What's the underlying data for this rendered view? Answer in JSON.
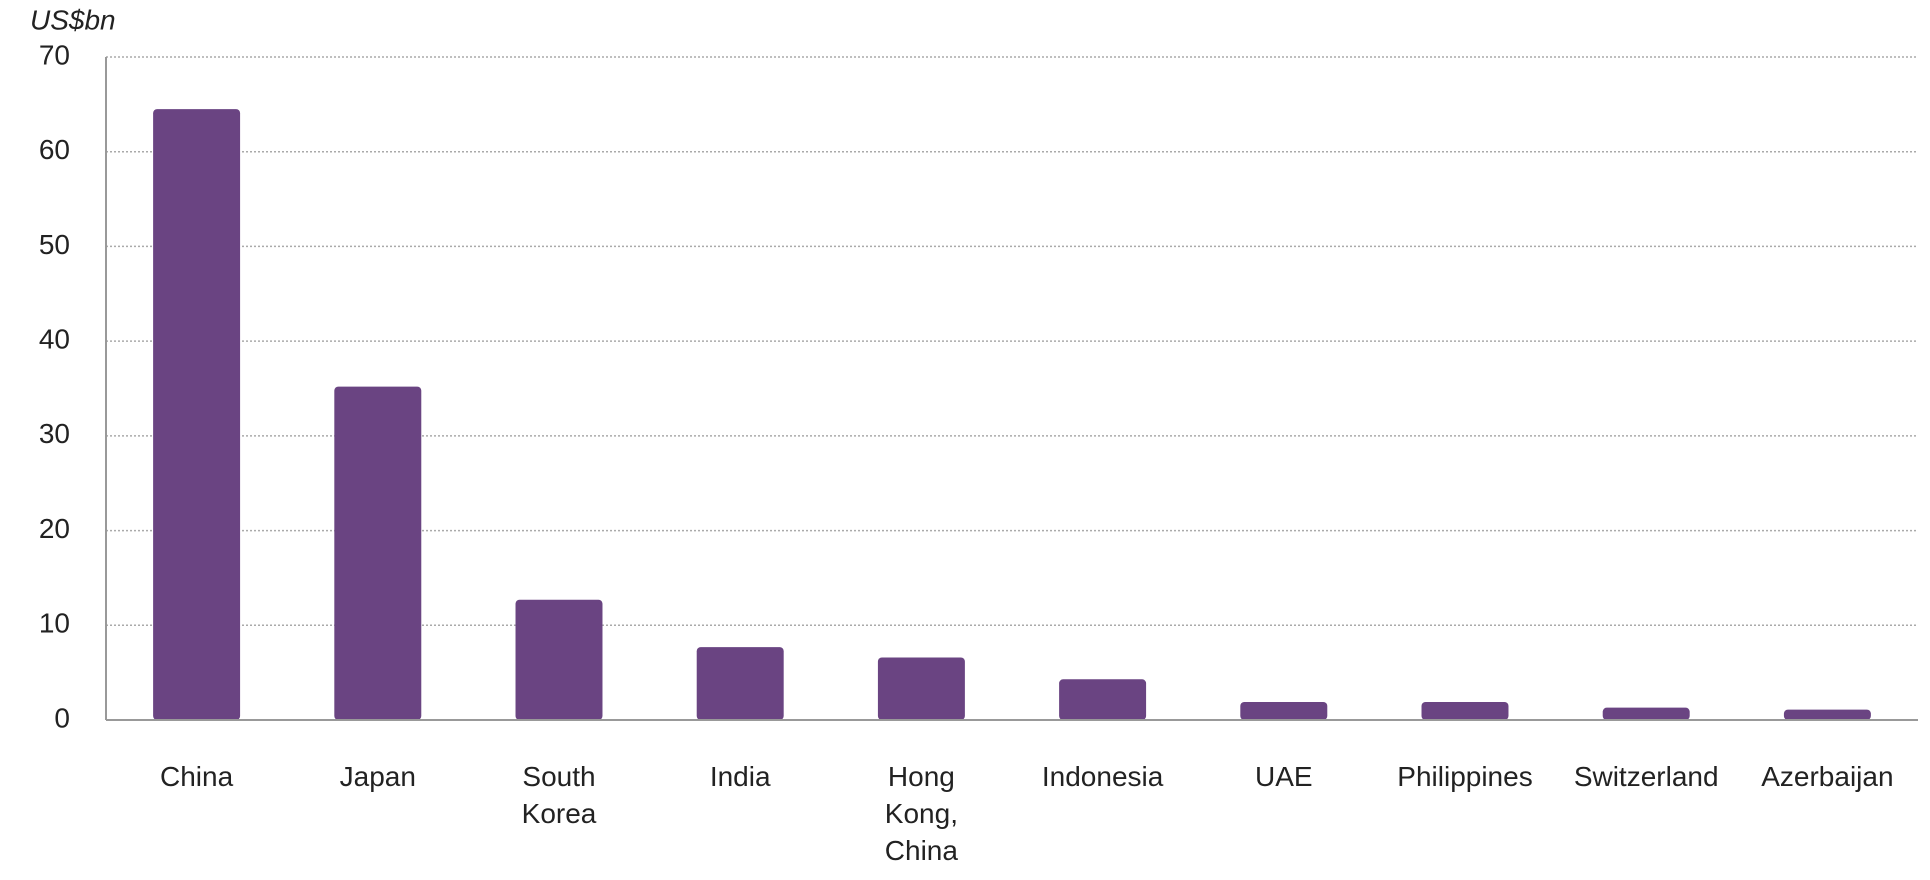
{
  "chart_data": {
    "type": "bar",
    "y_label": "US$bn",
    "categories": [
      "China",
      "Japan",
      "South\nKorea",
      "India",
      "Hong\nKong,\nChina",
      "Indonesia",
      "UAE",
      "Philippines",
      "Switzerland",
      "Azerbaijan"
    ],
    "values": [
      64.5,
      35.2,
      12.7,
      7.7,
      6.6,
      4.3,
      1.9,
      1.9,
      1.3,
      1.1
    ],
    "color": "#6a4482",
    "ylim": [
      0,
      70
    ],
    "yticks": [
      0,
      10,
      20,
      30,
      40,
      50,
      60,
      70
    ],
    "grid": true
  }
}
